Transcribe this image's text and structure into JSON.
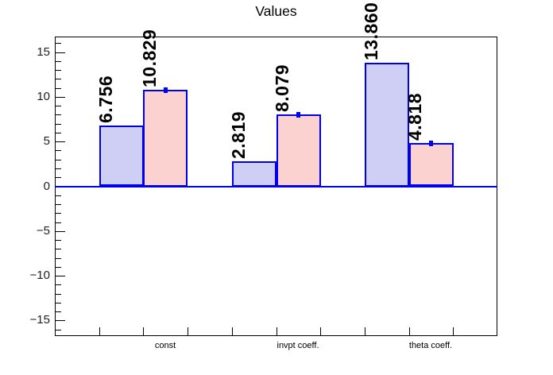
{
  "chart_data": {
    "type": "bar",
    "title": "Values",
    "categories": [
      "const",
      "invpt coeff.",
      "theta coeff."
    ],
    "series": [
      {
        "name": "series-blue",
        "fill": "#cfcff6",
        "border": "#0000f0",
        "bins": [
          1,
          4,
          7
        ],
        "values": [
          6.756,
          2.819,
          13.86
        ],
        "labels": [
          "6.756",
          "2.819",
          "13.860"
        ],
        "error_tick": false
      },
      {
        "name": "series-pink",
        "fill": "#fcd2d0",
        "border": "#0000f0",
        "bins": [
          2,
          5,
          8
        ],
        "values": [
          10.829,
          8.079,
          4.818
        ],
        "labels": [
          "10.829",
          "8.079",
          "4.818"
        ],
        "error_tick": true
      }
    ],
    "baseline_value": 0,
    "baseline_color": "#0000f0",
    "y_axis": {
      "range": [
        -16.75,
        16.75
      ],
      "major_ticks": [
        15,
        10,
        5,
        0,
        -5,
        -10,
        -15
      ],
      "major_tick_labels": [
        "15",
        "10",
        "5",
        "0",
        "−5",
        "−10",
        "−15"
      ],
      "minor_tick_step": 1
    },
    "x_axis": {
      "bins": 10,
      "tick_bin_edges": [
        1,
        2,
        3,
        4,
        5,
        6,
        7,
        8,
        9
      ],
      "category_center_bins": [
        2,
        5,
        8
      ]
    },
    "grid": false,
    "legend": "none",
    "frame_color": "#000000",
    "text_color": "#000000",
    "xlabel": "",
    "ylabel": ""
  }
}
